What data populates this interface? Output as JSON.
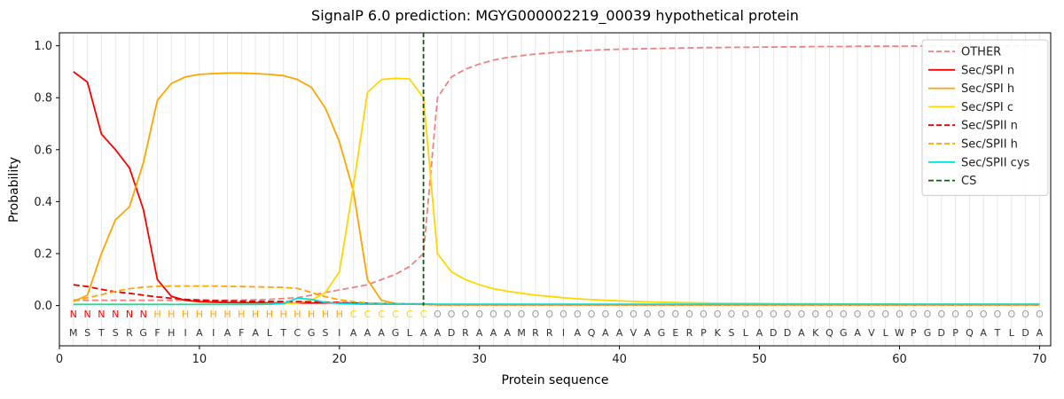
{
  "chart_data": {
    "type": "line",
    "title": "SignalP 6.0 prediction: MGYG000002219_00039 hypothetical protein",
    "xlabel": "Protein sequence",
    "ylabel": "Probability",
    "xlim": [
      0,
      70.8
    ],
    "ylim": [
      -0.155,
      1.05
    ],
    "xticks": [
      0,
      10,
      20,
      30,
      40,
      50,
      60,
      70
    ],
    "yticks": [
      0.0,
      0.2,
      0.4,
      0.6,
      0.8,
      1.0
    ],
    "grid": "vertical-per-residue",
    "legend_position": "upper-right",
    "sequence": "MSTSRGFHIAIAFALTCGSIAAAGLAADRAAAMRRIAQAAVAGERPKSLADDAKQGAVLWPGDPQATLDA",
    "regions": "NNNNNNHHHHHHHHHHHHHHCCCCCCOOOOOOOOOOOOOOOOOOOOOOOOOOOOOOOOOOOOOOOOOOOO",
    "region_colors": {
      "N": "#ff0000",
      "H": "#ffa500",
      "C": "#ffd700",
      "O": "#9e9e9e"
    },
    "sequence_color": "#303030",
    "cs_position": 26,
    "series": [
      {
        "name": "OTHER",
        "color": "#f08080",
        "dash": "dashed",
        "values": [
          0.02,
          0.02,
          0.02,
          0.02,
          0.02,
          0.02,
          0.02,
          0.02,
          0.02,
          0.02,
          0.02,
          0.02,
          0.021,
          0.022,
          0.024,
          0.027,
          0.03,
          0.04,
          0.05,
          0.06,
          0.07,
          0.08,
          0.1,
          0.12,
          0.15,
          0.2,
          0.8,
          0.88,
          0.91,
          0.93,
          0.945,
          0.955,
          0.962,
          0.968,
          0.973,
          0.977,
          0.98,
          0.983,
          0.985,
          0.987,
          0.988,
          0.989,
          0.99,
          0.991,
          0.992,
          0.993,
          0.993,
          0.994,
          0.994,
          0.995,
          0.995,
          0.996,
          0.996,
          0.997,
          0.997,
          0.997,
          0.998,
          0.998,
          0.998,
          0.998,
          0.999,
          0.999,
          0.999,
          0.999,
          0.999,
          1.0,
          1.0,
          1.0,
          1.0,
          1.0
        ]
      },
      {
        "name": "Sec/SPI n",
        "color": "#ff0000",
        "dash": "solid",
        "values": [
          0.9,
          0.86,
          0.66,
          0.6,
          0.53,
          0.37,
          0.1,
          0.035,
          0.02,
          0.015,
          0.013,
          0.012,
          0.011,
          0.011,
          0.01,
          0.01,
          0.01,
          0.01,
          0.01,
          0.01,
          0.008,
          0.008,
          0.007,
          0.007,
          0.006,
          0.006,
          0.003,
          0.003,
          0.003,
          0.003,
          0.003,
          0.003,
          0.003,
          0.003,
          0.003,
          0.003,
          0.003,
          0.003,
          0.003,
          0.003,
          0.003,
          0.003,
          0.003,
          0.003,
          0.003,
          0.003,
          0.003,
          0.003,
          0.003,
          0.003,
          0.003,
          0.003,
          0.003,
          0.003,
          0.003,
          0.003,
          0.003,
          0.003,
          0.003,
          0.003,
          0.003,
          0.003,
          0.003,
          0.003,
          0.003,
          0.003,
          0.003,
          0.003,
          0.003,
          0.003
        ]
      },
      {
        "name": "Sec/SPI h",
        "color": "#ffa500",
        "dash": "solid",
        "values": [
          0.015,
          0.04,
          0.2,
          0.33,
          0.38,
          0.55,
          0.79,
          0.855,
          0.88,
          0.89,
          0.893,
          0.895,
          0.895,
          0.893,
          0.89,
          0.885,
          0.87,
          0.84,
          0.76,
          0.63,
          0.44,
          0.1,
          0.02,
          0.008,
          0.005,
          0.004,
          0.003,
          0.003,
          0.003,
          0.003,
          0.003,
          0.003,
          0.003,
          0.003,
          0.003,
          0.003,
          0.003,
          0.003,
          0.003,
          0.003,
          0.003,
          0.003,
          0.003,
          0.003,
          0.003,
          0.003,
          0.003,
          0.003,
          0.003,
          0.003,
          0.003,
          0.003,
          0.003,
          0.003,
          0.003,
          0.003,
          0.003,
          0.003,
          0.003,
          0.003,
          0.003,
          0.003,
          0.003,
          0.003,
          0.003,
          0.003,
          0.003,
          0.003,
          0.003,
          0.003
        ]
      },
      {
        "name": "Sec/SPI c",
        "color": "#ffd700",
        "dash": "solid",
        "values": [
          0.005,
          0.005,
          0.005,
          0.005,
          0.005,
          0.005,
          0.005,
          0.005,
          0.005,
          0.005,
          0.005,
          0.005,
          0.005,
          0.005,
          0.006,
          0.008,
          0.01,
          0.02,
          0.05,
          0.13,
          0.46,
          0.82,
          0.87,
          0.875,
          0.872,
          0.8,
          0.2,
          0.13,
          0.1,
          0.08,
          0.065,
          0.055,
          0.047,
          0.04,
          0.035,
          0.03,
          0.026,
          0.023,
          0.02,
          0.018,
          0.016,
          0.014,
          0.013,
          0.012,
          0.011,
          0.01,
          0.009,
          0.009,
          0.008,
          0.008,
          0.007,
          0.007,
          0.007,
          0.007,
          0.007,
          0.006,
          0.006,
          0.006,
          0.006,
          0.006,
          0.005,
          0.005,
          0.005,
          0.005,
          0.005,
          0.005,
          0.005,
          0.005,
          0.005,
          0.005
        ]
      },
      {
        "name": "Sec/SPII n",
        "color": "#e60000",
        "dash": "dashed",
        "values": [
          0.08,
          0.073,
          0.062,
          0.053,
          0.047,
          0.04,
          0.033,
          0.028,
          0.024,
          0.021,
          0.019,
          0.018,
          0.017,
          0.016,
          0.016,
          0.015,
          0.015,
          0.014,
          0.013,
          0.012,
          0.01,
          0.008,
          0.007,
          0.006,
          0.005,
          0.005,
          0.004,
          0.004,
          0.004,
          0.004,
          0.004,
          0.004,
          0.004,
          0.004,
          0.004,
          0.004,
          0.004,
          0.004,
          0.004,
          0.004,
          0.004,
          0.004,
          0.004,
          0.004,
          0.004,
          0.004,
          0.004,
          0.004,
          0.004,
          0.004,
          0.004,
          0.004,
          0.004,
          0.004,
          0.004,
          0.004,
          0.004,
          0.004,
          0.004,
          0.004,
          0.004,
          0.004,
          0.004,
          0.004,
          0.004,
          0.004,
          0.004,
          0.004,
          0.004,
          0.004
        ]
      },
      {
        "name": "Sec/SPII h",
        "color": "#ffa500",
        "dash": "dashed",
        "values": [
          0.02,
          0.03,
          0.042,
          0.055,
          0.065,
          0.071,
          0.074,
          0.075,
          0.075,
          0.075,
          0.075,
          0.074,
          0.073,
          0.072,
          0.071,
          0.07,
          0.066,
          0.05,
          0.034,
          0.022,
          0.015,
          0.01,
          0.008,
          0.006,
          0.005,
          0.005,
          0.004,
          0.004,
          0.004,
          0.004,
          0.004,
          0.004,
          0.004,
          0.004,
          0.004,
          0.004,
          0.004,
          0.004,
          0.004,
          0.004,
          0.004,
          0.004,
          0.004,
          0.004,
          0.004,
          0.004,
          0.004,
          0.004,
          0.004,
          0.004,
          0.004,
          0.004,
          0.004,
          0.004,
          0.004,
          0.004,
          0.004,
          0.004,
          0.004,
          0.004,
          0.004,
          0.004,
          0.004,
          0.004,
          0.004,
          0.004,
          0.004,
          0.004,
          0.004,
          0.004
        ]
      },
      {
        "name": "Sec/SPII cys",
        "color": "#00dede",
        "dash": "solid",
        "values": [
          0.004,
          0.004,
          0.004,
          0.004,
          0.004,
          0.004,
          0.004,
          0.004,
          0.004,
          0.004,
          0.004,
          0.004,
          0.004,
          0.004,
          0.005,
          0.008,
          0.028,
          0.024,
          0.012,
          0.008,
          0.006,
          0.005,
          0.005,
          0.005,
          0.005,
          0.005,
          0.005,
          0.005,
          0.005,
          0.005,
          0.005,
          0.005,
          0.005,
          0.005,
          0.005,
          0.005,
          0.005,
          0.005,
          0.005,
          0.005,
          0.005,
          0.005,
          0.005,
          0.005,
          0.005,
          0.005,
          0.005,
          0.005,
          0.005,
          0.005,
          0.005,
          0.005,
          0.005,
          0.005,
          0.005,
          0.005,
          0.005,
          0.005,
          0.005,
          0.005,
          0.005,
          0.005,
          0.005,
          0.005,
          0.005,
          0.005,
          0.005,
          0.005,
          0.005,
          0.005
        ]
      },
      {
        "name": "CS",
        "color": "#006400",
        "dash": "dashed",
        "type": "vline",
        "x": 26
      }
    ]
  }
}
